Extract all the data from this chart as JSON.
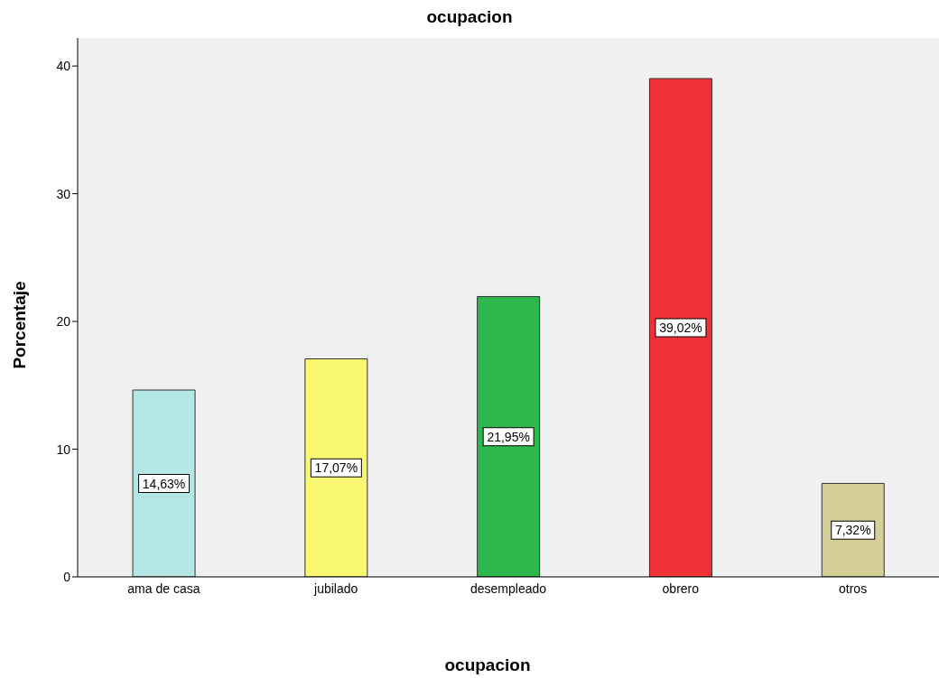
{
  "chart_data": {
    "type": "bar",
    "title": "ocupacion",
    "xlabel": "ocupacion",
    "ylabel": "Porcentaje",
    "categories": [
      "ama de casa",
      "jubilado",
      "desempleado",
      "obrero",
      "otros"
    ],
    "values": [
      14.63,
      17.07,
      21.95,
      39.02,
      7.32
    ],
    "colors": [
      "#b4e6e6",
      "#f9f871",
      "#2db84b",
      "#f03238",
      "#d4cf97"
    ],
    "value_labels": [
      "14,63%",
      "17,07%",
      "21,95%",
      "39,02%",
      "7,32%"
    ],
    "ylim": [
      0,
      42.2
    ],
    "yticks": [
      0,
      10,
      20,
      30,
      40
    ],
    "grid": false,
    "legend": false
  }
}
